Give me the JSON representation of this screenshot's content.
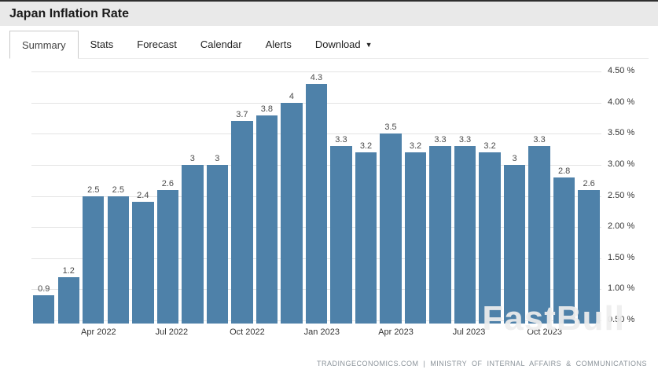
{
  "header": {
    "title": "Japan Inflation Rate"
  },
  "tabs": [
    {
      "label": "Summary",
      "active": true
    },
    {
      "label": "Stats",
      "active": false
    },
    {
      "label": "Forecast",
      "active": false
    },
    {
      "label": "Calendar",
      "active": false
    },
    {
      "label": "Alerts",
      "active": false
    },
    {
      "label": "Download",
      "active": false,
      "has_caret": true
    }
  ],
  "chart_data": {
    "type": "bar",
    "title": "Japan Inflation Rate",
    "values": [
      0.9,
      1.2,
      2.5,
      2.5,
      2.4,
      2.6,
      3,
      3,
      3.7,
      3.8,
      4,
      4.3,
      3.3,
      3.2,
      3.5,
      3.2,
      3.3,
      3.3,
      3.2,
      3,
      3.3,
      2.8,
      2.6
    ],
    "bar_labels": [
      "0.9",
      "1.2",
      "2.5",
      "2.5",
      "2.4",
      "2.6",
      "3",
      "3",
      "3.7",
      "3.8",
      "4",
      "4.3",
      "3.3",
      "3.2",
      "3.5",
      "3.2",
      "3.3",
      "3.3",
      "3.2",
      "3",
      "3.3",
      "2.8",
      "2.6"
    ],
    "x_ticks": [
      {
        "index": 2,
        "label": "Apr 2022"
      },
      {
        "index": 5,
        "label": "Jul 2022"
      },
      {
        "index": 8,
        "label": "Oct 2022"
      },
      {
        "index": 11,
        "label": "Jan 2023"
      },
      {
        "index": 14,
        "label": "Apr 2023"
      },
      {
        "index": 17,
        "label": "Jul 2023"
      },
      {
        "index": 20,
        "label": "Oct 2023"
      }
    ],
    "y_ticks": [
      "4.50 %",
      "4.00 %",
      "3.50 %",
      "3.00 %",
      "2.50 %",
      "2.00 %",
      "1.50 %",
      "1.00 %",
      "0.50 %"
    ],
    "ylim": [
      0.45,
      4.55
    ],
    "bar_color": "#4e81a9",
    "grid": true,
    "legend": "none",
    "xlabel": "",
    "ylabel": ""
  },
  "footer": {
    "attribution": "TRADINGECONOMICS.COM | MINISTRY OF INTERNAL AFFAIRS & COMMUNICATIONS"
  },
  "watermark": "FastBull"
}
